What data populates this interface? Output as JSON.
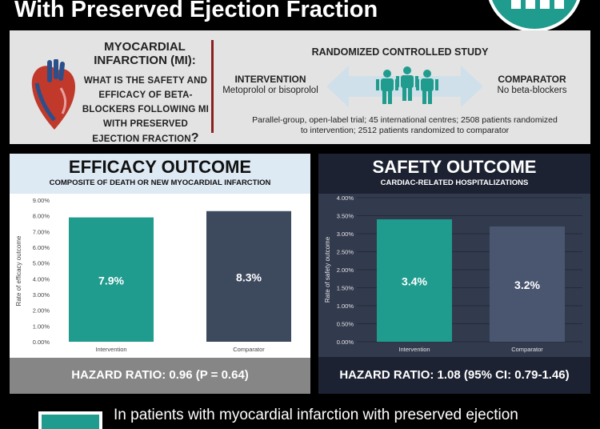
{
  "header": {
    "title": "With Preserved Ejection Fraction"
  },
  "question": {
    "title_line1": "MYOCARDIAL",
    "title_line2": "INFARCTION (MI):",
    "body_line1": "WHAT IS THE SAFETY AND",
    "body_line2": "EFFICACY OF BETA-",
    "body_line3": "BLOCKERS FOLLOWING MI",
    "body_line4": "WITH PRESERVED",
    "body_line5": "EJECTION FRACTION",
    "qmark": "?"
  },
  "study": {
    "title": "RANDOMIZED CONTROLLED STUDY",
    "intervention_label": "INTERVENTION",
    "intervention_detail": "Metoprolol or bisoprolol",
    "comparator_label": "COMPARATOR",
    "comparator_detail": "No beta-blockers",
    "description_line1": "Parallel-group, open-label trial; 45 international centres; 2508 patients randomized",
    "description_line2": "to intervention; 2512 patients randomized to comparator"
  },
  "efficacy": {
    "title": "EFFICACY OUTCOME",
    "subtitle": "COMPOSITE OF DEATH OR NEW MYOCARDIAL INFARCTION",
    "footer": "HAZARD RATIO: 0.96 (P = 0.64)"
  },
  "safety": {
    "title": "SAFETY OUTCOME",
    "subtitle": "CARDIAC-RELATED HOSPITALIZATIONS",
    "footer": "HAZARD RATIO: 1.08 (95% CI: 0.79-1.46)"
  },
  "bottom": {
    "text": "In patients with myocardial infarction with preserved ejection"
  },
  "colors": {
    "teal": "#1f9c8e",
    "slate": "#3d4a5e",
    "safety_bar_comparator": "#4a5670"
  },
  "chart_data": [
    {
      "type": "bar",
      "categories": [
        "Intervention",
        "Comparator"
      ],
      "values": [
        7.9,
        8.3
      ],
      "value_labels": [
        "7.9%",
        "8.3%"
      ],
      "ylabel": "Rate of efficacy outcome",
      "ylim": [
        0,
        9
      ],
      "yticks": [
        "0.00%",
        "1.00%",
        "2.00%",
        "3.00%",
        "4.00%",
        "5.00%",
        "6.00%",
        "7.00%",
        "8.00%",
        "9.00%"
      ],
      "grid": false
    },
    {
      "type": "bar",
      "categories": [
        "Intervention",
        "Comparator"
      ],
      "values": [
        3.4,
        3.2
      ],
      "value_labels": [
        "3.4%",
        "3.2%"
      ],
      "ylabel": "Rate of safety outcome",
      "ylim": [
        0,
        4
      ],
      "yticks": [
        "0.00%",
        "0.50%",
        "1.00%",
        "1.50%",
        "2.00%",
        "2.50%",
        "3.00%",
        "3.50%",
        "4.00%"
      ],
      "grid": true
    }
  ]
}
